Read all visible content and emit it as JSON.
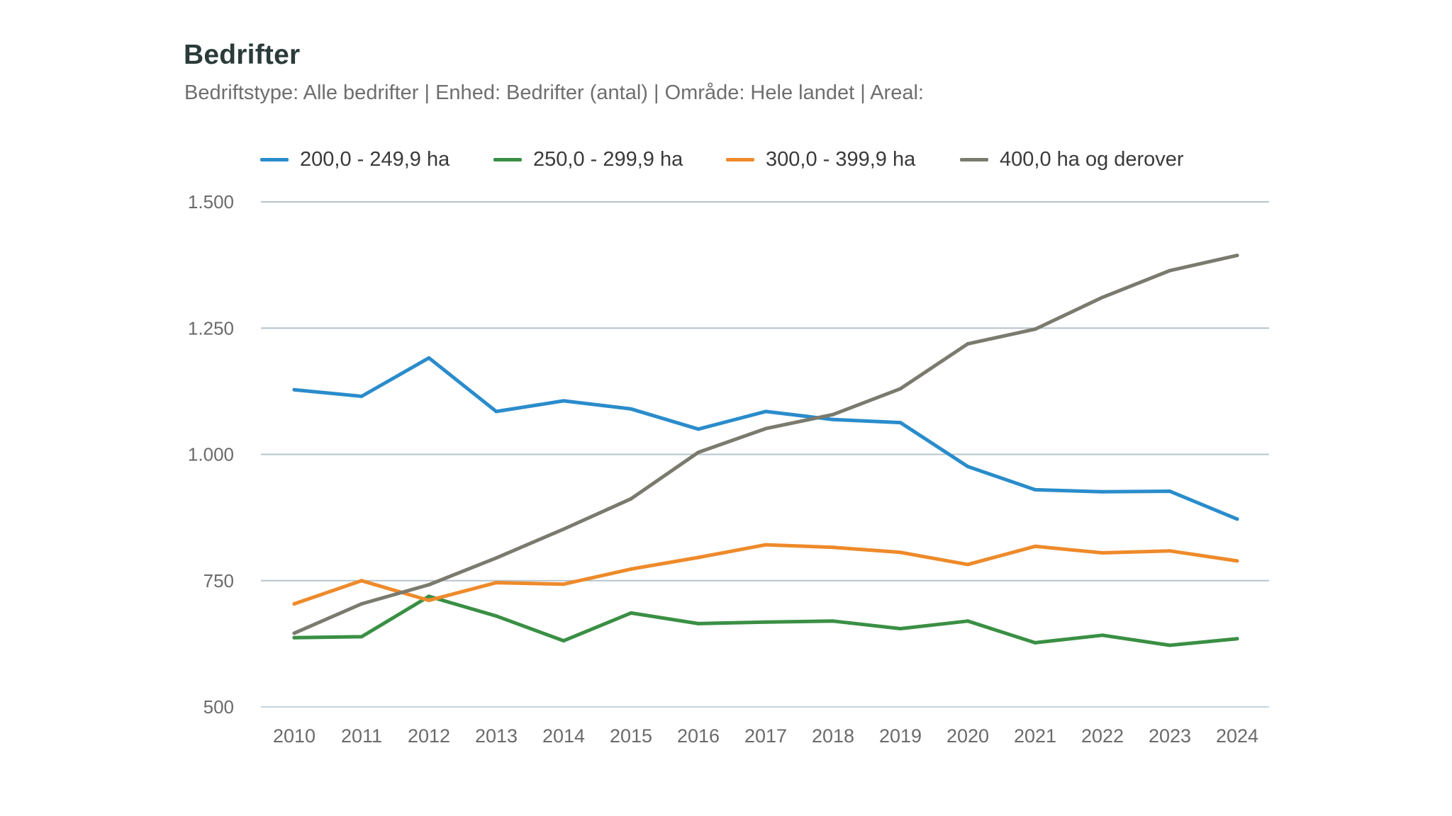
{
  "chart_data": {
    "type": "line",
    "title": "Bedrifter",
    "subtitle": "Bedriftstype: Alle bedrifter | Enhed: Bedrifter (antal) | Område: Hele landet | Areal:",
    "xlabel": "",
    "ylabel": "",
    "x": [
      "2010",
      "2011",
      "2012",
      "2013",
      "2014",
      "2015",
      "2016",
      "2017",
      "2018",
      "2019",
      "2020",
      "2021",
      "2022",
      "2023",
      "2024"
    ],
    "ylim": [
      500,
      1500
    ],
    "yticks": [
      500,
      750,
      1000,
      1250,
      1500
    ],
    "ytick_labels": [
      "500",
      "750",
      "1.000",
      "1.250",
      "1.500"
    ],
    "grid": true,
    "legend_position": "top",
    "series": [
      {
        "name": "200,0 - 249,9 ha",
        "color": "#2a8ccb",
        "values": [
          1128,
          1115,
          1191,
          1085,
          1106,
          1090,
          1050,
          1085,
          1069,
          1063,
          976,
          930,
          926,
          927,
          872
        ]
      },
      {
        "name": "250,0 - 299,9 ha",
        "color": "#3a8f44",
        "values": [
          637,
          639,
          719,
          680,
          631,
          686,
          665,
          668,
          670,
          655,
          670,
          627,
          642,
          622,
          635
        ]
      },
      {
        "name": "300,0 - 399,9 ha",
        "color": "#ee8a2a",
        "values": [
          704,
          750,
          711,
          746,
          743,
          773,
          796,
          821,
          816,
          806,
          782,
          818,
          805,
          809,
          789
        ]
      },
      {
        "name": "400,0 ha og derover",
        "color": "#7a7a6e",
        "values": [
          646,
          704,
          742,
          795,
          852,
          912,
          1004,
          1051,
          1079,
          1130,
          1219,
          1248,
          1311,
          1364,
          1394
        ]
      }
    ]
  },
  "colors": {
    "title": "#2a3b3a",
    "subtitle": "#6e6e6e",
    "gridline": "#b7c4cc",
    "axis_text": "#6a6a6a"
  }
}
